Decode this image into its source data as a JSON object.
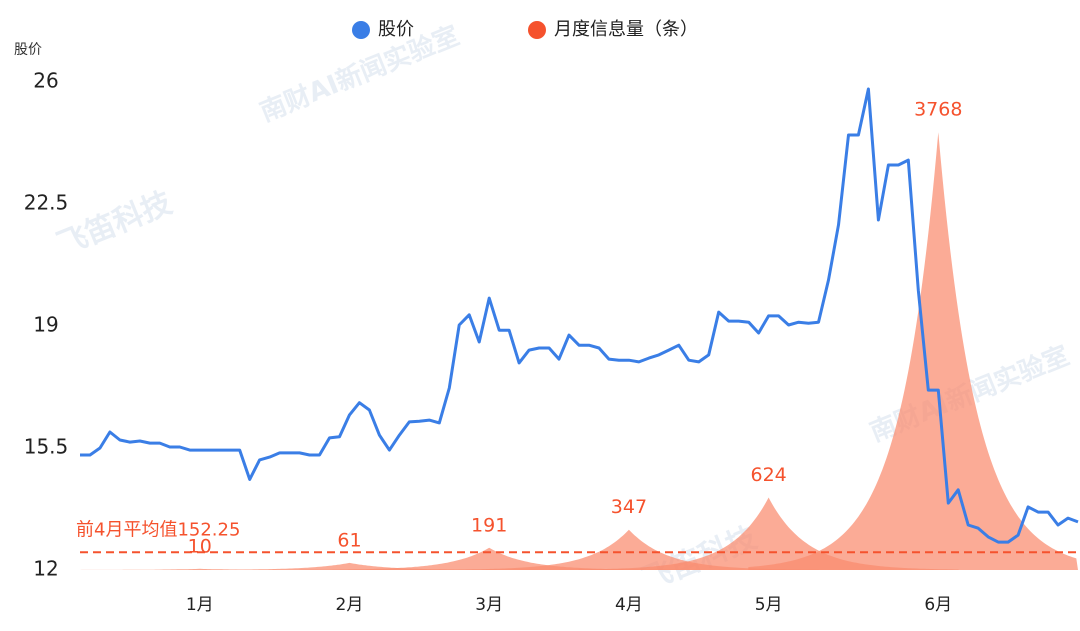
{
  "chart_data": {
    "type": "line",
    "y_axis_label": "股价",
    "categories": [
      null,
      null,
      null,
      null,
      null,
      null,
      null,
      null,
      null,
      null,
      null,
      null,
      "1月",
      null,
      null,
      null,
      null,
      null,
      null,
      null,
      null,
      null,
      null,
      null,
      null,
      null,
      null,
      "2月",
      null,
      null,
      null,
      null,
      null,
      null,
      null,
      null,
      null,
      null,
      null,
      null,
      null,
      "3月",
      null,
      null,
      null,
      null,
      null,
      null,
      null,
      null,
      null,
      null,
      null,
      null,
      null,
      "4月",
      null,
      null,
      null,
      null,
      null,
      null,
      null,
      null,
      null,
      null,
      null,
      null,
      null,
      "5月",
      null,
      null,
      null,
      null,
      null,
      null,
      null,
      null,
      null,
      null,
      null,
      null,
      null,
      null,
      null,
      null,
      "6月",
      null,
      null,
      null,
      null,
      null,
      null,
      null,
      null,
      null,
      null,
      null,
      null,
      null,
      null
    ],
    "series": [
      {
        "name": "股价",
        "color": "#3a7ee6",
        "values": [
          15.3,
          15.3,
          15.5,
          15.96,
          15.73,
          15.67,
          15.7,
          15.64,
          15.64,
          15.53,
          15.53,
          15.44,
          15.44,
          15.44,
          15.44,
          15.44,
          15.44,
          14.6,
          15.16,
          15.24,
          15.36,
          15.36,
          15.36,
          15.3,
          15.3,
          15.79,
          15.82,
          16.45,
          16.8,
          16.59,
          15.87,
          15.44,
          15.87,
          16.25,
          16.27,
          16.3,
          16.22,
          17.22,
          19.03,
          19.32,
          18.54,
          19.8,
          18.88,
          18.88,
          17.94,
          18.31,
          18.37,
          18.37,
          18.05,
          18.74,
          18.45,
          18.45,
          18.37,
          18.05,
          18.02,
          18.02,
          17.97,
          18.08,
          18.17,
          18.31,
          18.45,
          18.02,
          17.97,
          18.17,
          19.4,
          19.14,
          19.14,
          19.11,
          18.8,
          19.29,
          19.29,
          19.03,
          19.11,
          19.08,
          19.11,
          20.32,
          21.9,
          24.48,
          24.48,
          25.8,
          22.04,
          23.62,
          23.62,
          23.76,
          20.03,
          17.16,
          17.16,
          13.92,
          14.3,
          13.29,
          13.2,
          12.95,
          12.8,
          12.8,
          13.0,
          13.81,
          13.66,
          13.66,
          13.29,
          13.49,
          13.38
        ]
      },
      {
        "name": "月度信息量（条）",
        "color": "#f5522d",
        "axis": "y2",
        "values": [
          null,
          null,
          null,
          null,
          null,
          null,
          null,
          null,
          null,
          null,
          null,
          null,
          10,
          null,
          null,
          null,
          null,
          null,
          null,
          null,
          null,
          null,
          null,
          null,
          null,
          null,
          null,
          61,
          null,
          null,
          null,
          null,
          null,
          null,
          null,
          null,
          null,
          null,
          null,
          null,
          null,
          191,
          null,
          null,
          null,
          null,
          null,
          null,
          null,
          null,
          null,
          null,
          null,
          null,
          null,
          347,
          null,
          null,
          null,
          null,
          null,
          null,
          null,
          null,
          null,
          null,
          null,
          null,
          null,
          624,
          null,
          null,
          null,
          null,
          null,
          null,
          null,
          null,
          null,
          null,
          null,
          null,
          null,
          null,
          null,
          null,
          3768,
          null,
          null,
          null,
          null,
          null,
          null,
          null,
          null,
          null,
          null,
          null,
          null,
          null,
          null
        ]
      }
    ],
    "ylim": [
      12,
      26
    ],
    "yticks": [
      12,
      15.5,
      19,
      22.5,
      26
    ],
    "y2lim": [
      0,
      4200
    ],
    "reference_line": {
      "axis": "y2",
      "value": 152.25,
      "label": "前4月平均值152.25",
      "color": "#f5522d"
    },
    "legend": "top",
    "watermarks": [
      "南财AI新闻实验室",
      "飞笛科技",
      "南财AI新闻实验室",
      "飞笛科技"
    ]
  }
}
